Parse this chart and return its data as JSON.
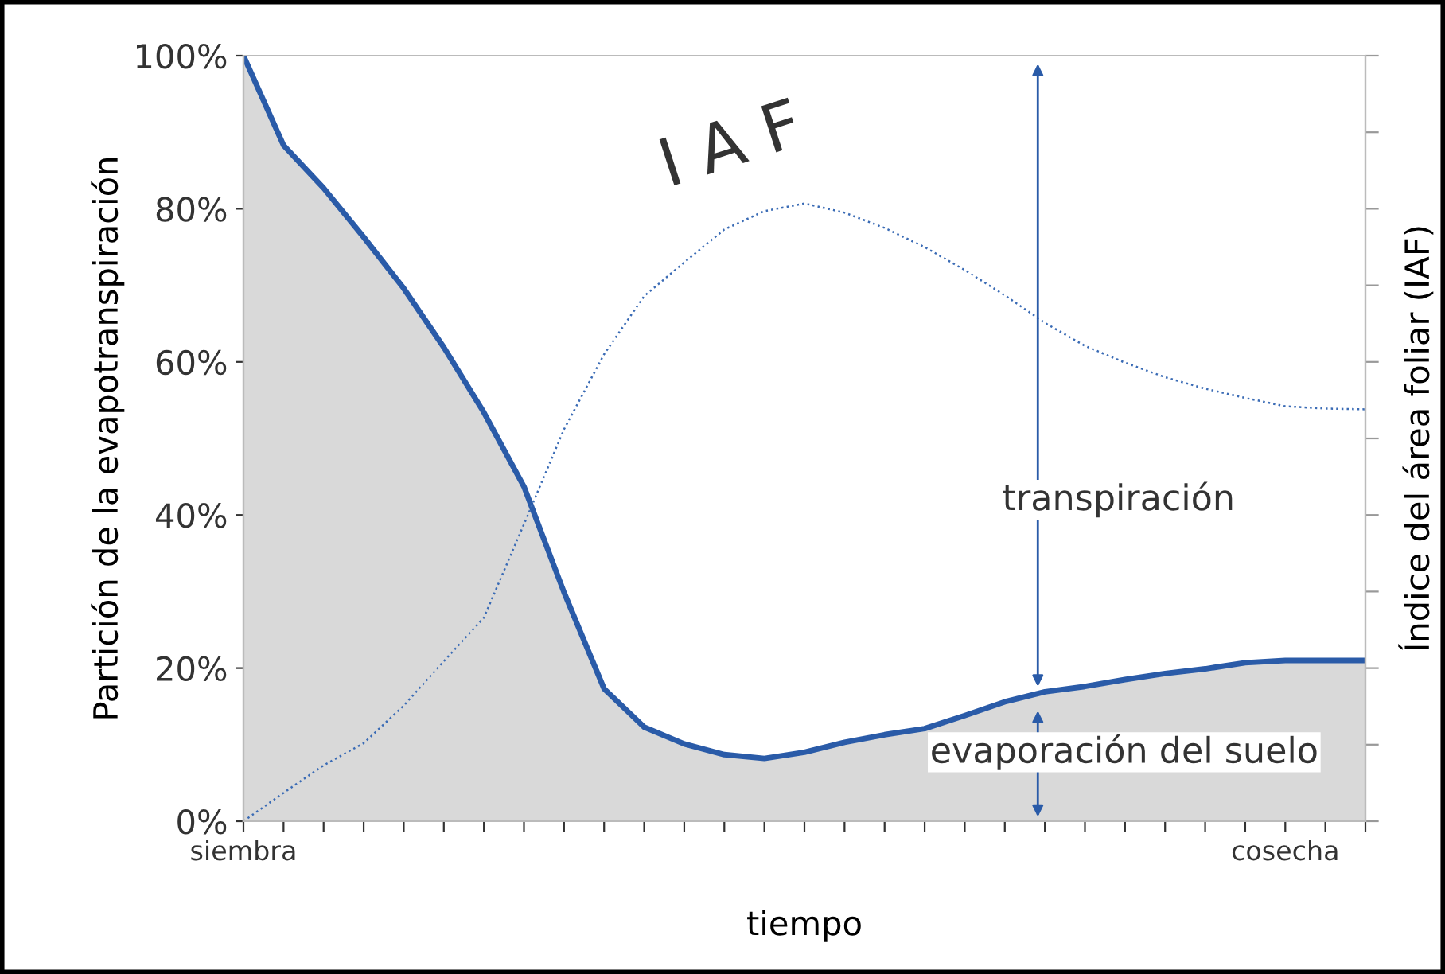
{
  "chart_data": {
    "type": "area",
    "xlabel": "tiempo",
    "ylabel": "Partición de la evapotranspiración",
    "y2label": "Índice del área foliar (IAF)",
    "categories": [
      "siembra",
      null,
      null,
      null,
      null,
      null,
      null,
      null,
      null,
      null,
      null,
      null,
      null,
      null,
      null,
      null,
      null,
      null,
      null,
      null,
      null,
      null,
      null,
      null,
      null,
      null,
      "cosecha",
      null,
      null
    ],
    "ylim": [
      0,
      100
    ],
    "yticks": [
      {
        "value": 0,
        "label": "0%"
      },
      {
        "value": 20,
        "label": "20%"
      },
      {
        "value": 40,
        "label": "40%"
      },
      {
        "value": 60,
        "label": "60%"
      },
      {
        "value": 80,
        "label": "80%"
      },
      {
        "value": 100,
        "label": "100%"
      }
    ],
    "series": [
      {
        "color": "#2a5ba8",
        "values": [
          100,
          88.3,
          82.7,
          76.3,
          69.6,
          61.9,
          53.4,
          43.7,
          29.9,
          17.3,
          12.3,
          10.1,
          8.7,
          8.2,
          9.0,
          10.3,
          11.3,
          12.1,
          13.8,
          15.6,
          16.9,
          17.6,
          18.5,
          19.3,
          19.9,
          20.7,
          21,
          21,
          21
        ]
      },
      {
        "type": "line",
        "line_style": "dotted",
        "color": "#3a6bb5",
        "values": [
          0,
          3.7,
          7.3,
          10.2,
          15.1,
          20.9,
          26.6,
          38.8,
          51.2,
          61.0,
          68.6,
          73.0,
          77.3,
          79.7,
          80.7,
          79.5,
          77.5,
          75.0,
          72.0,
          68.7,
          65.1,
          62.1,
          59.9,
          58.0,
          56.5,
          55.3,
          54.2,
          53.9,
          53.8
        ]
      }
    ],
    "annotations": [
      "I A F",
      "transpiración",
      "evaporación del suelo"
    ],
    "legend": false,
    "grid": false,
    "marker": "none"
  }
}
